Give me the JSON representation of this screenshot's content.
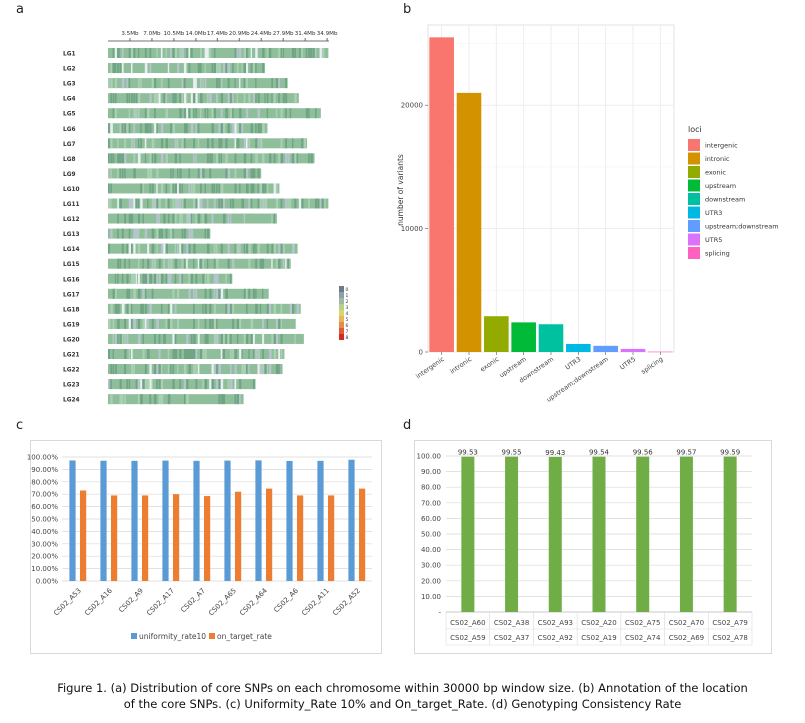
{
  "panel_labels": [
    "a",
    "b",
    "c",
    "d"
  ],
  "caption": {
    "line1": "Figure 1.   (a) Distribution of core SNPs on each chromosome  within 30000 bp window size. (b)  Annotation of the location",
    "line2": "of the core SNPs. (c) Uniformity_Rate 10% and On_target_Rate. (d) Genotyping Consistency Rate"
  },
  "colors": {
    "heat_green": "#8fbf9a",
    "heat_grey": "#b7c4d0",
    "bar_blue": "#5b9bd5",
    "bar_orange": "#ed7d31",
    "bar_green": "#70ad47",
    "ggplot_grid": "#ebebeb"
  },
  "chart_data": [
    {
      "type": "heatmap",
      "panel": "a",
      "x_tick_labels": [
        "3.5Mb",
        "7.0Mb",
        "10.5Mb",
        "14.0Mb",
        "17.4Mb",
        "20.9Mb",
        "24.4Mb",
        "27.9Mb",
        "31.4Mb",
        "34.9Mb"
      ],
      "x_tick_values_mb": [
        3.5,
        7.0,
        10.5,
        14.0,
        17.4,
        20.9,
        24.4,
        27.9,
        31.4,
        34.9
      ],
      "chromosomes": [
        "LG1",
        "LG2",
        "LG3",
        "LG4",
        "LG5",
        "LG6",
        "LG7",
        "LG8",
        "LG9",
        "LG10",
        "LG11",
        "LG12",
        "LG13",
        "LG14",
        "LG15",
        "LG16",
        "LG17",
        "LG18",
        "LG19",
        "LG20",
        "LG21",
        "LG22",
        "LG23",
        "LG24"
      ],
      "chromosome_lengths_mb": [
        35.1,
        25.0,
        28.6,
        30.4,
        33.9,
        25.4,
        31.7,
        32.9,
        24.4,
        27.3,
        35.1,
        26.9,
        16.3,
        30.2,
        29.1,
        19.8,
        25.6,
        30.7,
        29.9,
        31.2,
        28.1,
        27.8,
        23.5,
        21.6
      ],
      "legend_values": [
        "0",
        "1",
        "2",
        "3",
        "4",
        "5",
        "6",
        "7",
        "8"
      ],
      "legend_colors": [
        "#6b7b8c",
        "#8aa0b0",
        "#9fb9a3",
        "#b7cf8e",
        "#d8d86a",
        "#e8b55a",
        "#e58a4a",
        "#e05a36",
        "#d42a1e"
      ]
    },
    {
      "type": "bar",
      "panel": "b",
      "categories": [
        "intergenic",
        "intronic",
        "exonic",
        "upstream",
        "downstream",
        "UTR3",
        "upstream;downstream",
        "UTR5",
        "splicing"
      ],
      "values": [
        25500,
        21000,
        2900,
        2400,
        2250,
        650,
        500,
        250,
        30
      ],
      "colors": [
        "#f8766d",
        "#d39200",
        "#93aa00",
        "#00ba38",
        "#00c19f",
        "#00b9e3",
        "#619cff",
        "#db72fb",
        "#ff61c3"
      ],
      "ylabel": "number of variants",
      "ylim": [
        0,
        26500
      ],
      "yticks": [
        0,
        10000,
        20000
      ],
      "ytick_labels": [
        "0",
        "10000",
        "20000"
      ],
      "legend_title": "loci",
      "legend_position": "right",
      "grid": true
    },
    {
      "type": "bar",
      "panel": "c",
      "categories": [
        "CS02_A53",
        "CS02_A16",
        "CS02_A9",
        "CS02_A17",
        "CS02_A7",
        "CS02_A65",
        "CS02_A64",
        "CS02_A6",
        "CS02_A11",
        "CS02_A52"
      ],
      "series": [
        {
          "name": "uniformity_rate10",
          "values": [
            97.2,
            97.0,
            96.9,
            97.1,
            96.9,
            97.1,
            97.3,
            96.8,
            96.9,
            97.8
          ],
          "color": "#5b9bd5"
        },
        {
          "name": "on_target_rate",
          "values": [
            73.0,
            69.0,
            69.0,
            70.0,
            68.5,
            72.0,
            74.5,
            69.0,
            69.0,
            74.5
          ],
          "color": "#ed7d31"
        }
      ],
      "ylim": [
        0,
        100
      ],
      "ytick_labels": [
        "0.00%",
        "10.00%",
        "20.00%",
        "30.00%",
        "40.00%",
        "50.00%",
        "60.00%",
        "70.00%",
        "80.00%",
        "90.00%",
        "100.00%"
      ],
      "legend_position": "bottom",
      "grid": true
    },
    {
      "type": "bar",
      "panel": "d",
      "categories_top": [
        "CS02_A60",
        "CS02_A38",
        "CS02_A93",
        "CS02_A20",
        "CS02_A75",
        "CS02_A70",
        "CS02_A79"
      ],
      "categories_bottom": [
        "CS02_A59",
        "CS02_A37",
        "CS02_A92",
        "CS02_A19",
        "CS02_A74",
        "CS02_A69",
        "CS02_A78"
      ],
      "values": [
        99.53,
        99.55,
        99.43,
        99.54,
        99.56,
        99.57,
        99.59
      ],
      "value_labels": [
        "99.53",
        "99.55",
        "99.43",
        "99.54",
        "99.56",
        "99.57",
        "99.59"
      ],
      "ylim": [
        0,
        100
      ],
      "ytick_labels": [
        "-",
        "10.00",
        "20.00",
        "30.00",
        "40.00",
        "50.00",
        "60.00",
        "70.00",
        "80.00",
        "90.00",
        "100.00"
      ],
      "color": "#70ad47",
      "grid": true
    }
  ]
}
